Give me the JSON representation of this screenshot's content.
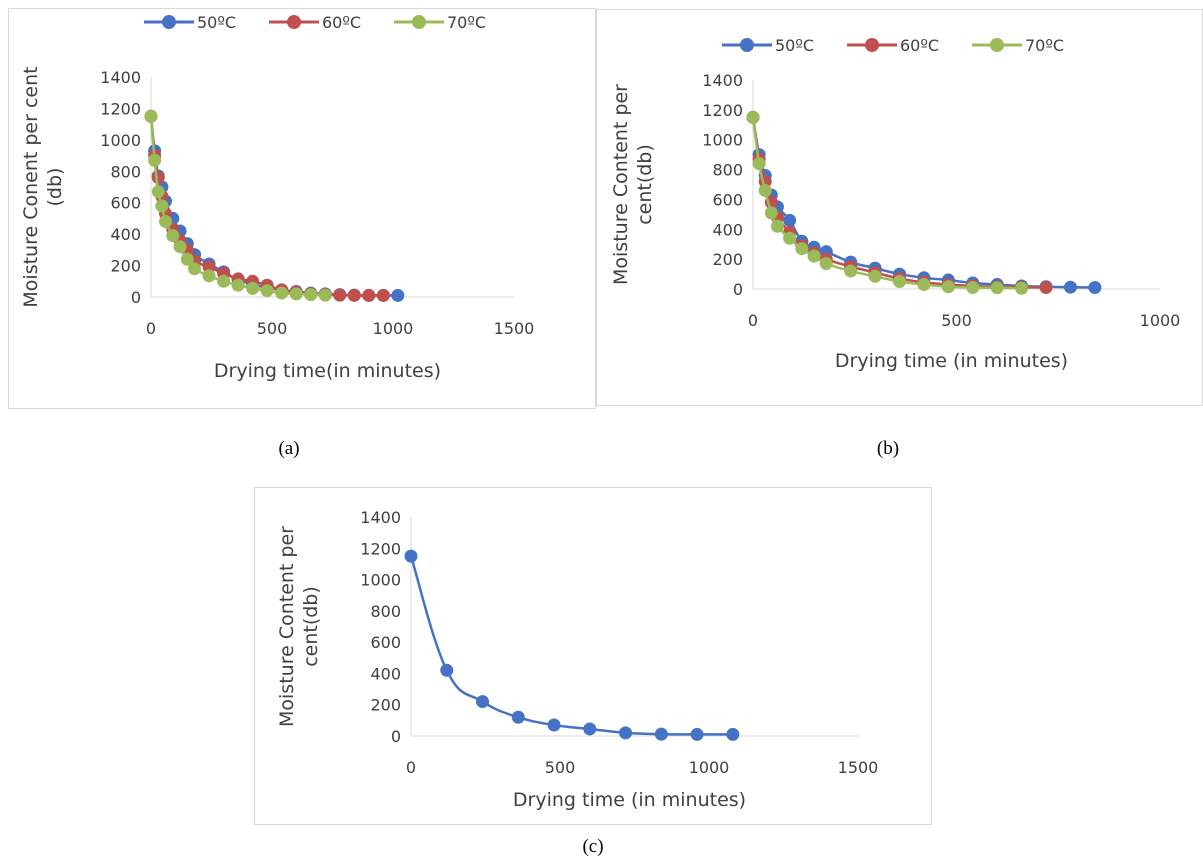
{
  "captions": [
    "(a)",
    "(b)",
    "(c)"
  ],
  "colors": {
    "50": "#4472C4",
    "60": "#C0504D",
    "70": "#9BBB59",
    "axis": "#d9d9d9",
    "text": "#404040"
  },
  "chart_data": [
    {
      "type": "line",
      "title": "",
      "xlabel": "Drying time(in minutes)",
      "ylabel": "Moisture Conent per cent (db)",
      "ylabel_lines": [
        "Moisture Conent per cent",
        "(db)"
      ],
      "xlim": [
        0,
        1500
      ],
      "ylim": [
        0,
        1400
      ],
      "xticks": [
        "0",
        "500",
        "1000",
        "1500"
      ],
      "yticks": [
        "0",
        "200",
        "400",
        "600",
        "800",
        "1000",
        "1200",
        "1400"
      ],
      "legend_position": "top",
      "grid": false,
      "series": [
        {
          "name": "50ºC",
          "color": "#4472C4",
          "x": [
            0,
            15,
            30,
            45,
            60,
            90,
            120,
            150,
            180,
            240,
            300,
            360,
            420,
            480,
            540,
            600,
            660,
            720,
            780,
            840,
            900,
            960,
            1020
          ],
          "y": [
            1150,
            930,
            770,
            700,
            610,
            500,
            420,
            340,
            270,
            210,
            160,
            110,
            80,
            60,
            45,
            35,
            25,
            20,
            15,
            12,
            10,
            10,
            10
          ]
        },
        {
          "name": "60ºC",
          "color": "#C0504D",
          "x": [
            0,
            15,
            30,
            45,
            60,
            90,
            120,
            150,
            180,
            240,
            300,
            360,
            420,
            480,
            540,
            600,
            660,
            720,
            780,
            840,
            900,
            960
          ],
          "y": [
            1150,
            900,
            760,
            640,
            530,
            430,
            360,
            300,
            230,
            190,
            150,
            115,
            100,
            75,
            45,
            30,
            20,
            15,
            12,
            10,
            10,
            10
          ]
        },
        {
          "name": "70ºC",
          "color": "#9BBB59",
          "x": [
            0,
            15,
            30,
            45,
            60,
            90,
            120,
            150,
            180,
            240,
            300,
            360,
            420,
            480,
            540,
            600,
            660,
            720
          ],
          "y": [
            1150,
            870,
            670,
            580,
            480,
            390,
            320,
            240,
            180,
            135,
            100,
            75,
            55,
            40,
            25,
            20,
            15,
            12
          ]
        }
      ]
    },
    {
      "type": "line",
      "title": "",
      "xlabel": "Drying time (in minutes)",
      "ylabel": "Moisture Content per cent(db)",
      "ylabel_lines": [
        "Moisture Content per",
        "cent(db)"
      ],
      "xlim": [
        0,
        1000
      ],
      "ylim": [
        0,
        1400
      ],
      "xticks": [
        "0",
        "500",
        "1000"
      ],
      "yticks": [
        "0",
        "200",
        "400",
        "600",
        "800",
        "1000",
        "1200",
        "1400"
      ],
      "legend_position": "top",
      "grid": false,
      "series": [
        {
          "name": "50ºC",
          "color": "#4472C4",
          "x": [
            0,
            15,
            30,
            45,
            60,
            90,
            120,
            150,
            180,
            240,
            300,
            360,
            420,
            480,
            540,
            600,
            660,
            720,
            780,
            840
          ],
          "y": [
            1150,
            900,
            760,
            630,
            550,
            460,
            320,
            280,
            250,
            180,
            140,
            100,
            75,
            60,
            40,
            30,
            20,
            15,
            12,
            10
          ]
        },
        {
          "name": "60ºC",
          "color": "#C0504D",
          "x": [
            0,
            15,
            30,
            45,
            60,
            90,
            120,
            150,
            180,
            240,
            300,
            360,
            420,
            480,
            540,
            600,
            660,
            720
          ],
          "y": [
            1150,
            870,
            720,
            580,
            480,
            380,
            290,
            240,
            200,
            150,
            110,
            70,
            45,
            30,
            20,
            15,
            12,
            10
          ]
        },
        {
          "name": "70ºC",
          "color": "#9BBB59",
          "x": [
            0,
            15,
            30,
            45,
            60,
            90,
            120,
            150,
            180,
            240,
            300,
            360,
            420,
            480,
            540,
            600,
            660
          ],
          "y": [
            1150,
            840,
            660,
            510,
            420,
            340,
            270,
            220,
            170,
            120,
            85,
            50,
            30,
            15,
            10,
            8,
            5
          ]
        }
      ]
    },
    {
      "type": "line",
      "title": "",
      "xlabel": "Drying time (in minutes)",
      "ylabel": "Moisture Content per cent(db)",
      "ylabel_lines": [
        "Moisture Content per",
        "cent(db)"
      ],
      "xlim": [
        0,
        1500
      ],
      "ylim": [
        0,
        1400
      ],
      "xticks": [
        "0",
        "500",
        "1000",
        "1500"
      ],
      "yticks": [
        "0",
        "200",
        "400",
        "600",
        "800",
        "1000",
        "1200",
        "1400"
      ],
      "legend_position": "none",
      "grid": false,
      "series": [
        {
          "color": "#4472C4",
          "x": [
            0,
            120,
            240,
            360,
            480,
            600,
            720,
            840,
            960,
            1080
          ],
          "y": [
            1150,
            420,
            220,
            120,
            70,
            45,
            20,
            12,
            10,
            10
          ]
        }
      ]
    }
  ]
}
